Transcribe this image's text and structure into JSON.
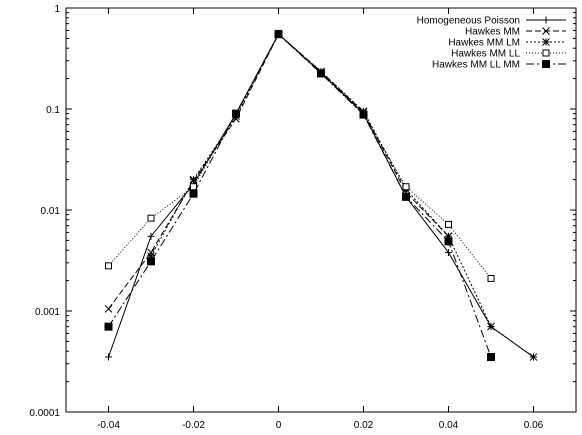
{
  "chart_data": {
    "type": "line",
    "title": "",
    "xlabel": "",
    "ylabel": "",
    "xlim": [
      -0.05,
      0.07
    ],
    "ylim": [
      0.0001,
      1
    ],
    "yscale": "log",
    "grid": false,
    "legend_position": "top-right",
    "x_ticks": [
      {
        "value": -0.04,
        "label": "-0.04"
      },
      {
        "value": -0.02,
        "label": "-0.02"
      },
      {
        "value": 0,
        "label": "0"
      },
      {
        "value": 0.02,
        "label": "0.02"
      },
      {
        "value": 0.04,
        "label": "0.04"
      },
      {
        "value": 0.06,
        "label": "0.06"
      }
    ],
    "y_ticks": [
      {
        "value": 1,
        "label": "1"
      },
      {
        "value": 0.1,
        "label": "0.1"
      },
      {
        "value": 0.01,
        "label": "0.01"
      },
      {
        "value": 0.001,
        "label": "0.001"
      },
      {
        "value": 0.0001,
        "label": "0.0001"
      }
    ],
    "series": [
      {
        "name": "Homogeneous Poisson",
        "marker": "plus",
        "dash": "",
        "points": [
          [
            -0.04,
            0.00035
          ],
          [
            -0.03,
            0.0055
          ],
          [
            -0.02,
            0.018
          ],
          [
            -0.01,
            0.09
          ],
          [
            0,
            0.55
          ],
          [
            0.01,
            0.23
          ],
          [
            0.02,
            0.09
          ],
          [
            0.03,
            0.0135
          ],
          [
            0.04,
            0.0038
          ],
          [
            0.05,
            0.0007
          ],
          [
            0.06,
            0.00035
          ]
        ]
      },
      {
        "name": "Hawkes MM",
        "marker": "cross",
        "dash": "6,3",
        "points": [
          [
            -0.04,
            0.00105
          ],
          [
            -0.03,
            0.0038
          ],
          [
            -0.02,
            0.0195
          ],
          [
            -0.01,
            0.08
          ],
          [
            0,
            0.55
          ],
          [
            0.01,
            0.235
          ],
          [
            0.02,
            0.093
          ],
          [
            0.03,
            0.015
          ],
          [
            0.04,
            0.0055
          ]
        ]
      },
      {
        "name": "Hawkes MM LM",
        "marker": "star",
        "dash": "2,2",
        "points": [
          [
            -0.03,
            0.0035
          ],
          [
            -0.02,
            0.02
          ],
          [
            -0.01,
            0.085
          ],
          [
            0,
            0.55
          ],
          [
            0.01,
            0.235
          ],
          [
            0.02,
            0.095
          ],
          [
            0.03,
            0.016
          ],
          [
            0.04,
            0.0055
          ],
          [
            0.05,
            0.0007
          ],
          [
            0.06,
            0.00035
          ]
        ]
      },
      {
        "name": "Hawkes MM LL",
        "marker": "open-square",
        "dash": "1,2",
        "points": [
          [
            -0.04,
            0.0028
          ],
          [
            -0.03,
            0.0083
          ],
          [
            -0.02,
            0.017
          ],
          [
            -0.01,
            0.09
          ],
          [
            0,
            0.56
          ],
          [
            0.01,
            0.225
          ],
          [
            0.02,
            0.088
          ],
          [
            0.03,
            0.017
          ],
          [
            0.04,
            0.0072
          ],
          [
            0.05,
            0.0021
          ]
        ]
      },
      {
        "name": "Hawkes MM LL MM",
        "marker": "filled-square",
        "dash": "8,3,2,3",
        "points": [
          [
            -0.04,
            0.0007
          ],
          [
            -0.03,
            0.0031
          ],
          [
            -0.02,
            0.0145
          ],
          [
            -0.01,
            0.09
          ],
          [
            0,
            0.55
          ],
          [
            0.01,
            0.225
          ],
          [
            0.02,
            0.088
          ],
          [
            0.03,
            0.0135
          ],
          [
            0.04,
            0.0049
          ],
          [
            0.05,
            0.00035
          ]
        ]
      }
    ]
  }
}
